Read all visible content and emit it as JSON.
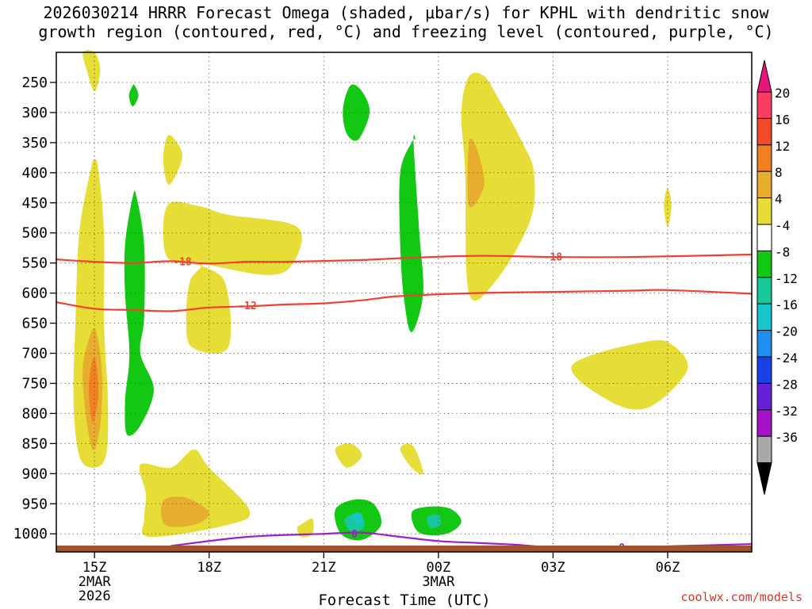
{
  "chart_data": {
    "type": "heatmap",
    "title_line1": "2026030214 HRRR Forecast Omega (shaded, μbar/s) for KPHL with dendritic snow",
    "title_line2": "growth region (contoured, red, °C) and freezing level (contoured, purple, °C)",
    "xlabel": "Forecast Time (UTC)",
    "ylabel": "",
    "x_ticks": [
      {
        "label": "15Z",
        "sub1": "2MAR",
        "sub2": "2026",
        "hour": 0
      },
      {
        "label": "18Z",
        "sub1": "",
        "sub2": "",
        "hour": 3
      },
      {
        "label": "21Z",
        "sub1": "",
        "sub2": "",
        "hour": 6
      },
      {
        "label": "00Z",
        "sub1": "3MAR",
        "sub2": "",
        "hour": 9
      },
      {
        "label": "03Z",
        "sub1": "",
        "sub2": "",
        "hour": 12
      },
      {
        "label": "06Z",
        "sub1": "",
        "sub2": "",
        "hour": 15
      }
    ],
    "x_range_hours": [
      -1.0,
      17.2
    ],
    "y_ticks": [
      "250",
      "300",
      "350",
      "400",
      "450",
      "500",
      "550",
      "600",
      "650",
      "700",
      "750",
      "800",
      "850",
      "900",
      "950",
      "1000"
    ],
    "y_range_hpa": [
      200,
      1030
    ],
    "colorbar": {
      "labels": [
        "20",
        "16",
        "12",
        "8",
        "4",
        "-4",
        "-8",
        "-12",
        "-16",
        "-20",
        "-24",
        "-28",
        "-32",
        "-36"
      ],
      "colors": [
        "#ff3a63",
        "#f34a2a",
        "#f08022",
        "#e6ad2e",
        "#e6dd36",
        "#ffffff",
        "#13c813",
        "#17c89a",
        "#17c6c8",
        "#1e8ff0",
        "#1b3fe8",
        "#6620d8",
        "#a612c8",
        "#a8a8a8"
      ],
      "top_arrow_color": "#e8157f",
      "bottom_arrow_color": "#000000"
    },
    "omega_regions": [
      {
        "level": 4,
        "color": "#e6dd36",
        "pts": [
          [
            -0.3,
            200
          ],
          [
            -0.2,
            230
          ],
          [
            0.0,
            265
          ],
          [
            0.15,
            230
          ],
          [
            0.0,
            200
          ]
        ]
      },
      {
        "level": 4,
        "color": "#e6dd36",
        "pts": [
          [
            -0.1,
            395
          ],
          [
            -0.4,
            500
          ],
          [
            -0.5,
            650
          ],
          [
            -0.55,
            780
          ],
          [
            -0.4,
            870
          ],
          [
            -0.05,
            890
          ],
          [
            0.3,
            870
          ],
          [
            0.35,
            780
          ],
          [
            0.25,
            650
          ],
          [
            0.25,
            500
          ],
          [
            0.1,
            395
          ],
          [
            0.0,
            378
          ]
        ]
      },
      {
        "level": 8,
        "color": "#e6ad2e",
        "pts": [
          [
            -0.05,
            660
          ],
          [
            -0.3,
            720
          ],
          [
            -0.25,
            790
          ],
          [
            -0.05,
            860
          ],
          [
            0.15,
            820
          ],
          [
            0.2,
            740
          ],
          [
            0.1,
            680
          ]
        ]
      },
      {
        "level": 12,
        "color": "#f08022",
        "pts": [
          [
            -0.05,
            710
          ],
          [
            -0.15,
            760
          ],
          [
            -0.05,
            815
          ],
          [
            0.1,
            770
          ],
          [
            0.05,
            720
          ]
        ]
      },
      {
        "level": -4,
        "color": "#13c813",
        "pts": [
          [
            1.0,
            255
          ],
          [
            0.9,
            272
          ],
          [
            1.0,
            290
          ],
          [
            1.15,
            272
          ],
          [
            1.05,
            255
          ]
        ]
      },
      {
        "level": -4,
        "color": "#13c813",
        "pts": [
          [
            1.0,
            440
          ],
          [
            0.8,
            520
          ],
          [
            0.8,
            600
          ],
          [
            0.9,
            680
          ],
          [
            0.9,
            720
          ],
          [
            0.8,
            780
          ],
          [
            0.85,
            835
          ],
          [
            1.2,
            820
          ],
          [
            1.55,
            760
          ],
          [
            1.2,
            700
          ],
          [
            1.3,
            640
          ],
          [
            1.3,
            520
          ],
          [
            1.1,
            440
          ]
        ]
      },
      {
        "level": 4,
        "color": "#e6dd36",
        "pts": [
          [
            1.9,
            340
          ],
          [
            1.8,
            380
          ],
          [
            1.95,
            420
          ],
          [
            2.3,
            375
          ],
          [
            2.1,
            345
          ]
        ]
      },
      {
        "level": 4,
        "color": "#e6dd36",
        "pts": [
          [
            1.9,
            455
          ],
          [
            1.9,
            540
          ],
          [
            2.8,
            550
          ],
          [
            2.5,
            580
          ],
          [
            2.4,
            640
          ],
          [
            2.55,
            690
          ],
          [
            3.5,
            690
          ],
          [
            3.4,
            580
          ],
          [
            2.6,
            550
          ],
          [
            4.5,
            570
          ],
          [
            5.2,
            550
          ],
          [
            5.3,
            490
          ],
          [
            3.5,
            470
          ],
          [
            2.7,
            455
          ]
        ]
      },
      {
        "level": 4,
        "color": "#e6dd36",
        "pts": [
          [
            1.2,
            885
          ],
          [
            1.35,
            935
          ],
          [
            1.3,
            975
          ],
          [
            1.45,
            1005
          ],
          [
            3.5,
            985
          ],
          [
            4.05,
            960
          ],
          [
            3.0,
            890
          ],
          [
            2.6,
            860
          ],
          [
            2.0,
            890
          ]
        ]
      },
      {
        "level": 8,
        "color": "#e6ad2e",
        "pts": [
          [
            1.8,
            945
          ],
          [
            1.85,
            985
          ],
          [
            2.6,
            985
          ],
          [
            3.0,
            965
          ],
          [
            2.4,
            940
          ]
        ]
      },
      {
        "level": -4,
        "color": "#13c813",
        "pts": [
          [
            6.7,
            255
          ],
          [
            6.5,
            295
          ],
          [
            6.6,
            335
          ],
          [
            6.9,
            345
          ],
          [
            7.2,
            300
          ],
          [
            7.0,
            265
          ]
        ]
      },
      {
        "level": 4,
        "color": "#e6dd36",
        "pts": [
          [
            6.3,
            860
          ],
          [
            6.6,
            890
          ],
          [
            7.0,
            870
          ],
          [
            6.7,
            850
          ]
        ]
      },
      {
        "level": 4,
        "color": "#e6dd36",
        "pts": [
          [
            5.3,
            990
          ],
          [
            5.4,
            1005
          ],
          [
            5.7,
            1000
          ],
          [
            5.7,
            975
          ],
          [
            5.4,
            985
          ]
        ]
      },
      {
        "level": -4,
        "color": "#13c813",
        "pts": [
          [
            6.3,
            960
          ],
          [
            6.45,
            1000
          ],
          [
            7.0,
            1010
          ],
          [
            7.5,
            985
          ],
          [
            7.3,
            950
          ],
          [
            6.8,
            943
          ]
        ]
      },
      {
        "level": -8,
        "color": "#17c89a",
        "pts": [
          [
            6.55,
            975
          ],
          [
            6.7,
            995
          ],
          [
            7.05,
            990
          ],
          [
            6.95,
            965
          ]
        ]
      },
      {
        "level": -12,
        "color": "#17c6c8",
        "pts": [
          [
            6.75,
            970
          ],
          [
            6.85,
            985
          ],
          [
            7.0,
            978
          ],
          [
            6.9,
            965
          ]
        ]
      },
      {
        "level": -4,
        "color": "#13c813",
        "pts": [
          [
            8.3,
            350
          ],
          [
            8.0,
            400
          ],
          [
            8.0,
            520
          ],
          [
            8.1,
            610
          ],
          [
            8.3,
            665
          ],
          [
            8.6,
            600
          ],
          [
            8.5,
            500
          ],
          [
            8.35,
            350
          ],
          [
            8.4,
            345
          ]
        ]
      },
      {
        "level": 4,
        "color": "#e6dd36",
        "pts": [
          [
            8.0,
            860
          ],
          [
            8.3,
            890
          ],
          [
            8.6,
            900
          ],
          [
            8.4,
            860
          ],
          [
            8.2,
            850
          ]
        ]
      },
      {
        "level": -4,
        "color": "#13c813",
        "pts": [
          [
            8.3,
            965
          ],
          [
            8.5,
            998
          ],
          [
            9.2,
            1000
          ],
          [
            9.6,
            980
          ],
          [
            9.3,
            958
          ],
          [
            8.7,
            955
          ]
        ]
      },
      {
        "level": -8,
        "color": "#17c89a",
        "pts": [
          [
            8.7,
            972
          ],
          [
            8.8,
            990
          ],
          [
            9.05,
            985
          ],
          [
            9.0,
            968
          ]
        ]
      },
      {
        "level": 4,
        "color": "#e6dd36",
        "pts": [
          [
            9.8,
            240
          ],
          [
            9.6,
            300
          ],
          [
            9.7,
            400
          ],
          [
            9.8,
            600
          ],
          [
            10.5,
            580
          ],
          [
            11.4,
            480
          ],
          [
            11.5,
            400
          ],
          [
            11.2,
            350
          ],
          [
            10.6,
            280
          ],
          [
            10.2,
            240
          ]
        ]
      },
      {
        "level": 8,
        "color": "#e6ad2e",
        "pts": [
          [
            9.8,
            350
          ],
          [
            9.8,
            455
          ],
          [
            10.2,
            420
          ],
          [
            10.0,
            360
          ]
        ]
      },
      {
        "level": 4,
        "color": "#e6dd36",
        "pts": [
          [
            15.0,
            425
          ],
          [
            14.9,
            455
          ],
          [
            15.0,
            490
          ],
          [
            15.1,
            455
          ]
        ]
      },
      {
        "level": 4,
        "color": "#e6dd36",
        "pts": [
          [
            12.5,
            720
          ],
          [
            13.5,
            780
          ],
          [
            14.5,
            790
          ],
          [
            15.5,
            730
          ],
          [
            15.2,
            690
          ],
          [
            14.5,
            680
          ]
        ]
      }
    ],
    "contours": [
      {
        "name": "dgz-minus18",
        "value": "-18",
        "color": "#ee4035",
        "pts": [
          [
            -1.0,
            544
          ],
          [
            0.0,
            548
          ],
          [
            1.0,
            550
          ],
          [
            2.0,
            547
          ],
          [
            3.0,
            551
          ],
          [
            4.0,
            548
          ],
          [
            5.0,
            548
          ],
          [
            7.0,
            545
          ],
          [
            8.0,
            542
          ],
          [
            10.0,
            538
          ],
          [
            12.0,
            540
          ],
          [
            14.0,
            540
          ],
          [
            17.2,
            536
          ]
        ],
        "labels": [
          {
            "x": 2.3,
            "y": 547
          },
          {
            "x": 12.0,
            "y": 539
          }
        ]
      },
      {
        "name": "dgz-minus12",
        "value": "-12",
        "color": "#ee4035",
        "pts": [
          [
            -1.0,
            615
          ],
          [
            0.0,
            626
          ],
          [
            1.0,
            628
          ],
          [
            2.0,
            630
          ],
          [
            3.0,
            624
          ],
          [
            4.0,
            622
          ],
          [
            5.0,
            619
          ],
          [
            6.0,
            617
          ],
          [
            7.0,
            612
          ],
          [
            8.0,
            605
          ],
          [
            10.0,
            600
          ],
          [
            12.0,
            598
          ],
          [
            14.0,
            596
          ],
          [
            15.0,
            595
          ],
          [
            17.2,
            601
          ]
        ],
        "labels": [
          {
            "x": 4.0,
            "y": 620
          }
        ]
      },
      {
        "name": "freezing-level-0",
        "value": "0",
        "color": "#9b20c6",
        "pts": [
          [
            2.0,
            1020
          ],
          [
            4.0,
            1005
          ],
          [
            6.0,
            1000
          ],
          [
            7.0,
            998
          ],
          [
            8.0,
            1005
          ],
          [
            9.0,
            1012
          ],
          [
            10.0,
            1015
          ],
          [
            11.0,
            1018
          ],
          [
            12.0,
            1022
          ],
          [
            14.0,
            1022
          ],
          [
            16.0,
            1019
          ],
          [
            17.2,
            1017
          ]
        ],
        "labels": [
          {
            "x": 6.8,
            "y": 1000
          },
          {
            "x": 13.8,
            "y": 1022
          }
        ]
      }
    ]
  },
  "credit": "coolwx.com/models"
}
